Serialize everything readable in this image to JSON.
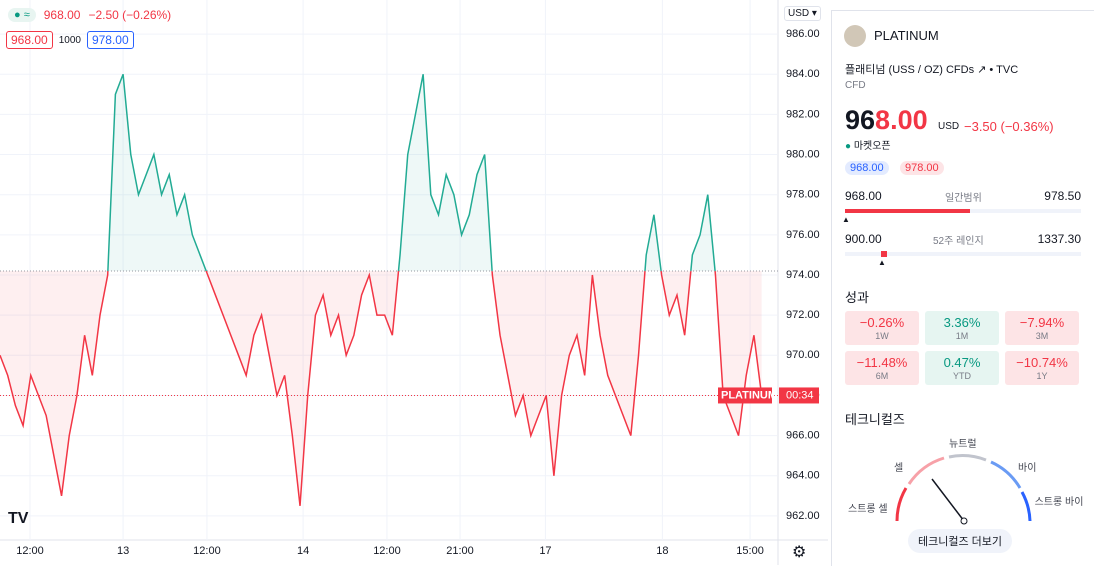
{
  "chart": {
    "type": "line",
    "header": {
      "status": "≈",
      "price": "968.00",
      "change": "−2.50 (−0.26%)",
      "bid": "968.00",
      "spread": "1000",
      "ask": "978.00"
    },
    "currency": "USD",
    "values": [
      970,
      969,
      967.5,
      966.5,
      969,
      968,
      967,
      965,
      963,
      966,
      968,
      971,
      969,
      972,
      974,
      983,
      984,
      980,
      978,
      979,
      980,
      978,
      979,
      977,
      978,
      976,
      975,
      974,
      973,
      972,
      971,
      970,
      969,
      971,
      972,
      970,
      968,
      969,
      966,
      962.5,
      968,
      972,
      973,
      971,
      972,
      970,
      971,
      973,
      974,
      972,
      972,
      971,
      975,
      980,
      982,
      984,
      978,
      977,
      979,
      978,
      976,
      977,
      979,
      980,
      974,
      971,
      969,
      967,
      968,
      966,
      967,
      968,
      964,
      968,
      970,
      971,
      969,
      974,
      971,
      969,
      968,
      967,
      966,
      970,
      975,
      977,
      974,
      972,
      973,
      971,
      975,
      976,
      978,
      974,
      968,
      967,
      966,
      969,
      971,
      968
    ],
    "baseline": 974.2,
    "up_color": "#22ab94",
    "down_color": "#f23645",
    "xlim": [
      0,
      101
    ],
    "xticks": [
      {
        "value": 3.9,
        "label": "12:00"
      },
      {
        "value": 16,
        "label": "13"
      },
      {
        "value": 26.9,
        "label": "12:00"
      },
      {
        "value": 39.4,
        "label": "14"
      },
      {
        "value": 50.3,
        "label": "12:00"
      },
      {
        "value": 59.8,
        "label": "21:00"
      },
      {
        "value": 70.9,
        "label": "17"
      },
      {
        "value": 86.1,
        "label": "18"
      },
      {
        "value": 97.5,
        "label": "15:00"
      }
    ],
    "ylim": [
      961,
      987
    ],
    "yticks": [
      {
        "value": 962,
        "label": "962.00"
      },
      {
        "value": 964,
        "label": "964.00"
      },
      {
        "value": 966,
        "label": "966.00"
      },
      {
        "value": 968,
        "label": "968.00"
      },
      {
        "value": 970,
        "label": "970.00"
      },
      {
        "value": 972,
        "label": "972.00"
      },
      {
        "value": 974,
        "label": "974.00"
      },
      {
        "value": 976,
        "label": "976.00"
      },
      {
        "value": 978,
        "label": "978.00"
      },
      {
        "value": 980,
        "label": "980.00"
      },
      {
        "value": 982,
        "label": "982.00"
      },
      {
        "value": 984,
        "label": "984.00"
      },
      {
        "value": 986,
        "label": "986.00"
      }
    ],
    "grid": true,
    "last_label": {
      "name": "PLATINUM",
      "countdown": "00:34"
    }
  },
  "sidebar": {
    "symbol": "PLATINUM",
    "description": "플래티넘 (USS / OZ) CFDs",
    "source": "TVC",
    "type": "CFD",
    "price": [
      "96",
      "8.00"
    ],
    "currency": "USD",
    "change": "−3.50 (−0.36%)",
    "status": "마켓오픈",
    "bid": "968.00",
    "ask": "978.00",
    "day_range": {
      "low": "968.00",
      "label": "일간범위",
      "high": "978.50"
    },
    "week52_range": {
      "low": "900.00",
      "label": "52주 레인지",
      "high": "1337.30"
    },
    "performance_title": "성과",
    "performance": [
      {
        "value": "−0.26%",
        "period": "1W"
      },
      {
        "value": "3.36%",
        "period": "1M"
      },
      {
        "value": "−7.94%",
        "period": "3M"
      },
      {
        "value": "−11.48%",
        "period": "6M"
      },
      {
        "value": "0.47%",
        "period": "YTD"
      },
      {
        "value": "−10.74%",
        "period": "1Y"
      }
    ],
    "technicals_title": "테크니컬즈",
    "gauge": {
      "strong_sell": "스트롱 셀",
      "sell": "셀",
      "neutral": "뉴트럴",
      "buy": "바이",
      "strong_buy": "스트롱 바이"
    },
    "more_button": "테크니컬즈 더보기"
  }
}
